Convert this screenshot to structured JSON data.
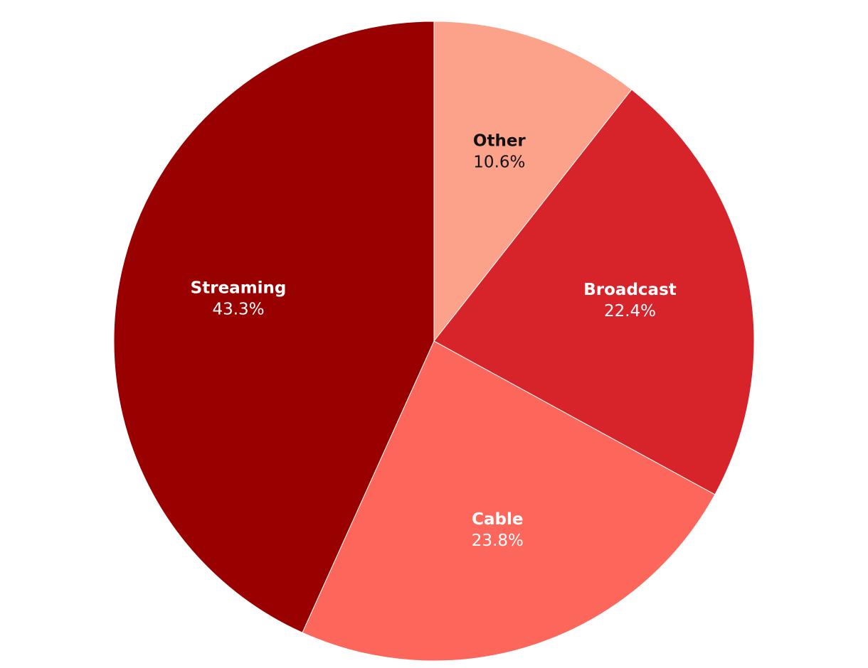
{
  "chart_data": {
    "type": "pie",
    "categories": [
      "Other",
      "Broadcast",
      "Cable",
      "Streaming"
    ],
    "values": [
      10.6,
      22.4,
      23.8,
      43.3
    ],
    "value_labels": [
      "10.6%",
      "22.4%",
      "23.8%",
      "43.3%"
    ],
    "colors": [
      "#fca18a",
      "#d7232a",
      "#fd665a",
      "#990000"
    ]
  }
}
